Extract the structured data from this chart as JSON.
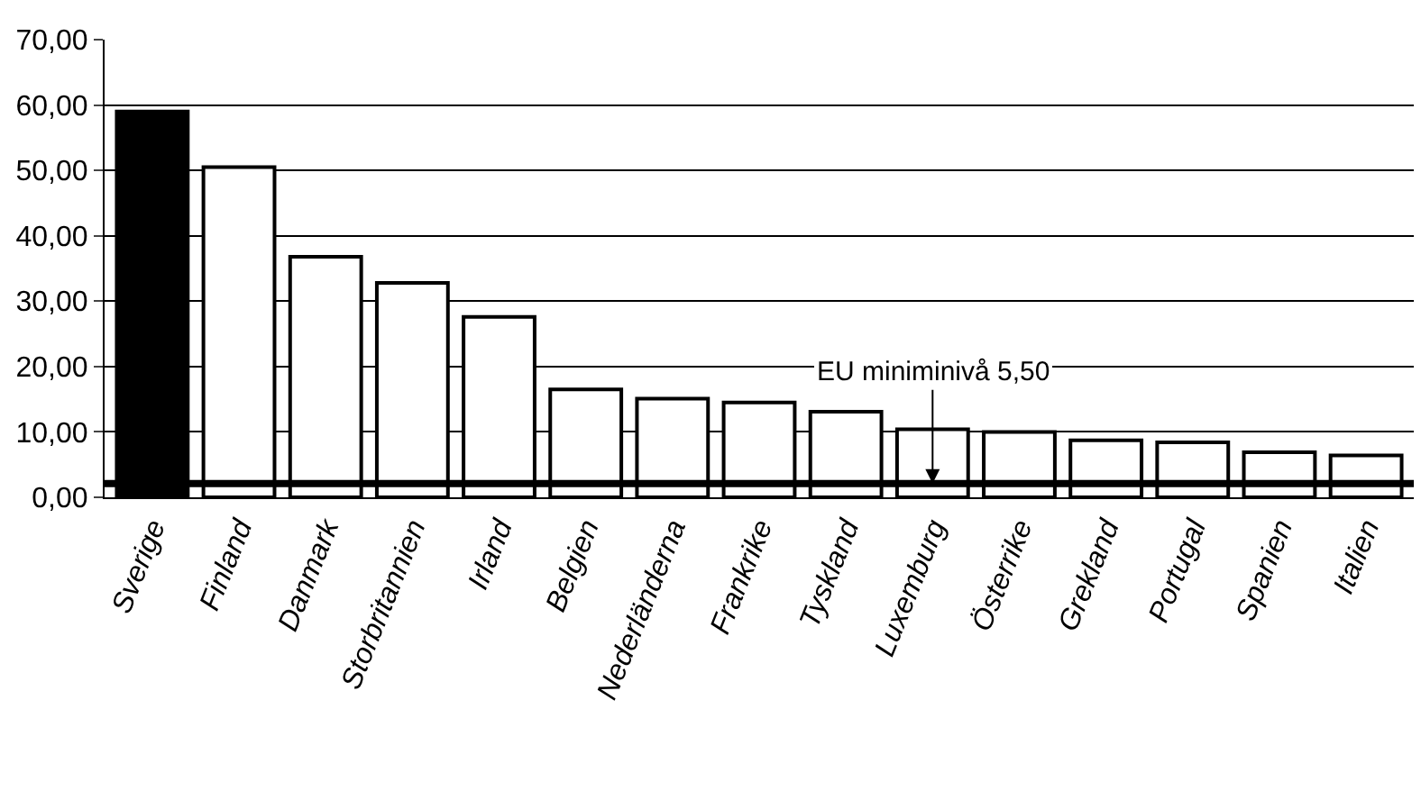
{
  "chart_data": {
    "type": "bar",
    "categories": [
      "Sverige",
      "Finland",
      "Danmark",
      "Storbritannien",
      "Irland",
      "Belgien",
      "Nederländerna",
      "Frankrike",
      "Tyskland",
      "Luxemburg",
      "Österrike",
      "Grekland",
      "Portugal",
      "Spanien",
      "Italien"
    ],
    "values": [
      59.0,
      50.5,
      36.8,
      32.8,
      27.6,
      16.5,
      15.1,
      14.5,
      13.1,
      10.4,
      10.0,
      8.7,
      8.4,
      6.9,
      6.4
    ],
    "colors": [
      "#000000",
      "#ffffff",
      "#ffffff",
      "#ffffff",
      "#ffffff",
      "#ffffff",
      "#ffffff",
      "#ffffff",
      "#ffffff",
      "#ffffff",
      "#ffffff",
      "#ffffff",
      "#ffffff",
      "#ffffff",
      "#ffffff"
    ],
    "ylim": [
      0,
      70
    ],
    "yticks": [
      {
        "value": 0,
        "label": "0,00"
      },
      {
        "value": 10,
        "label": "10,00"
      },
      {
        "value": 20,
        "label": "20,00"
      },
      {
        "value": 30,
        "label": "30,00"
      },
      {
        "value": 40,
        "label": "40,00"
      },
      {
        "value": 50,
        "label": "50,00"
      },
      {
        "value": 60,
        "label": "60,00"
      },
      {
        "value": 70,
        "label": "70,00"
      }
    ],
    "grid": "y",
    "ref_lines": [
      {
        "axis": "y",
        "value": 2.1,
        "color": "#000000"
      }
    ],
    "annotations": [
      {
        "text": "EU miniminivå 5,50",
        "x": "Luxemburg",
        "y": 2.1
      }
    ]
  }
}
